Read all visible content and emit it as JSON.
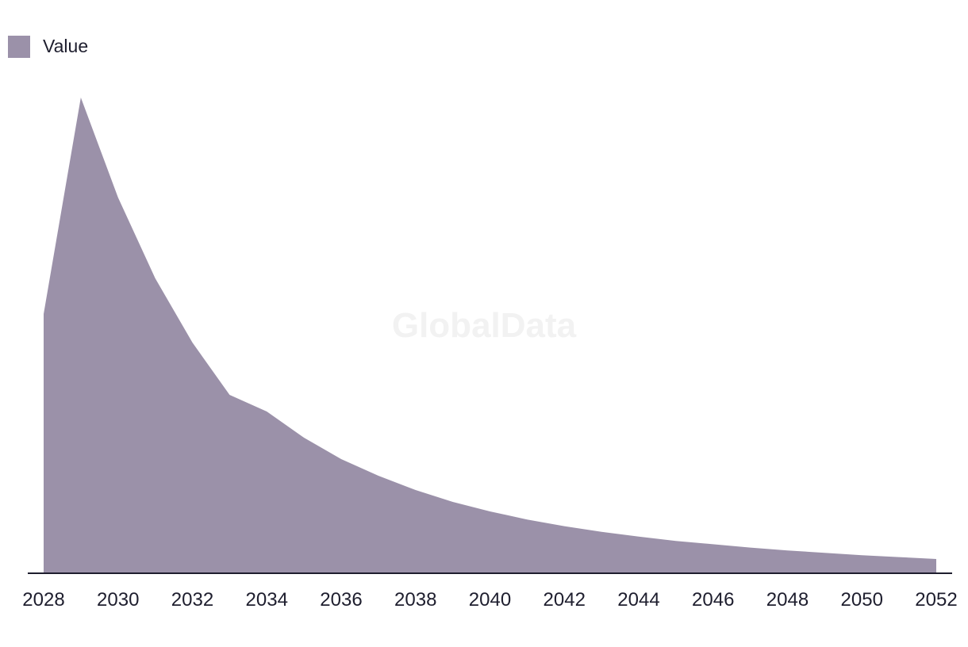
{
  "chart_data": {
    "type": "area",
    "title": "",
    "xlabel": "",
    "ylabel": "",
    "x": [
      2028,
      2029,
      2030,
      2031,
      2032,
      2033,
      2034,
      2035,
      2036,
      2037,
      2038,
      2039,
      2040,
      2041,
      2042,
      2043,
      2044,
      2045,
      2046,
      2047,
      2048,
      2049,
      2050,
      2051,
      2052
    ],
    "series": [
      {
        "name": "Value",
        "color": "#9b91a9",
        "values": [
          54.5,
          100,
          79,
          62,
          48.5,
          37.5,
          34,
          28.5,
          24,
          20.5,
          17.5,
          15,
          13,
          11.3,
          9.9,
          8.7,
          7.7,
          6.8,
          6.1,
          5.4,
          4.8,
          4.3,
          3.8,
          3.4,
          3
        ]
      }
    ],
    "xticks": [
      "2028",
      "2030",
      "2032",
      "2034",
      "2036",
      "2038",
      "2040",
      "2042",
      "2044",
      "2046",
      "2048",
      "2050",
      "2052"
    ],
    "ylim": [
      0,
      100
    ],
    "grid": false,
    "legend": {
      "position": "top-left",
      "entries": [
        "Value"
      ]
    },
    "axis_color": "#1e1e2e"
  },
  "watermark": "GlobalData"
}
